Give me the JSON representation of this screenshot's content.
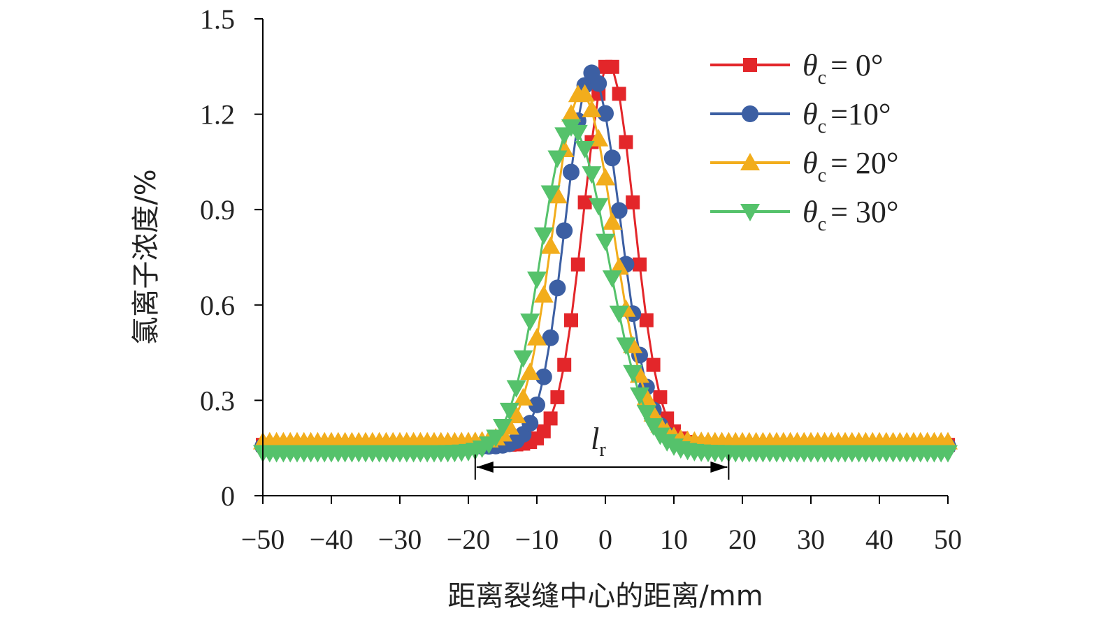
{
  "chart_data": {
    "type": "line",
    "title": "",
    "xlabel": "距离裂缝中心的距离/mm",
    "ylabel": "氯离子浓度/%",
    "xlim": [
      -50,
      50
    ],
    "ylim": [
      0,
      1.5
    ],
    "xticks": [
      -50,
      -40,
      -30,
      -20,
      -10,
      0,
      10,
      20,
      30,
      40,
      50
    ],
    "xtick_labels": [
      "−50",
      "−40",
      "−30",
      "−20",
      "−10",
      "0",
      "10",
      "20",
      "30",
      "40",
      "50"
    ],
    "yticks": [
      0,
      0.3,
      0.6,
      0.9,
      1.2,
      1.5
    ],
    "ytick_labels": [
      "0",
      "0.3",
      "0.6",
      "0.9",
      "1.2",
      "1.5"
    ],
    "grid": false,
    "legend_position": "top-right",
    "x_step": 1,
    "series": [
      {
        "name": "θc = 0°",
        "symbol": "θ",
        "subscript": "c",
        "value_text": "= 0°",
        "marker": "square",
        "color": "#e3262a",
        "peak_x": 0.5,
        "peak": 1.36,
        "base": 0.16,
        "left_width": 5.2,
        "right_width": 5.2
      },
      {
        "name": "θc =10°",
        "symbol": "θ",
        "subscript": "c",
        "value_text": "=10°",
        "marker": "circle",
        "color": "#3c5fa3",
        "peak_x": -2.0,
        "peak": 1.33,
        "base": 0.155,
        "left_width": 5.4,
        "right_width": 5.9
      },
      {
        "name": "θc = 20°",
        "symbol": "θ",
        "subscript": "c",
        "value_text": "= 20°",
        "marker": "triangle-up",
        "color": "#f2ad1c",
        "peak_x": -3.5,
        "peak": 1.27,
        "base": 0.17,
        "left_width": 5.9,
        "right_width": 6.6
      },
      {
        "name": "θc = 30°",
        "symbol": "θ",
        "subscript": "c",
        "value_text": "= 30°",
        "marker": "triangle-down",
        "color": "#55c26b",
        "peak_x": -5.0,
        "peak": 1.16,
        "base": 0.135,
        "left_width": 6.3,
        "right_width": 7.6
      }
    ],
    "annotation": {
      "label_main": "l",
      "label_sub": "r",
      "x_start": -19,
      "x_end": 18,
      "y": 0.09
    }
  }
}
